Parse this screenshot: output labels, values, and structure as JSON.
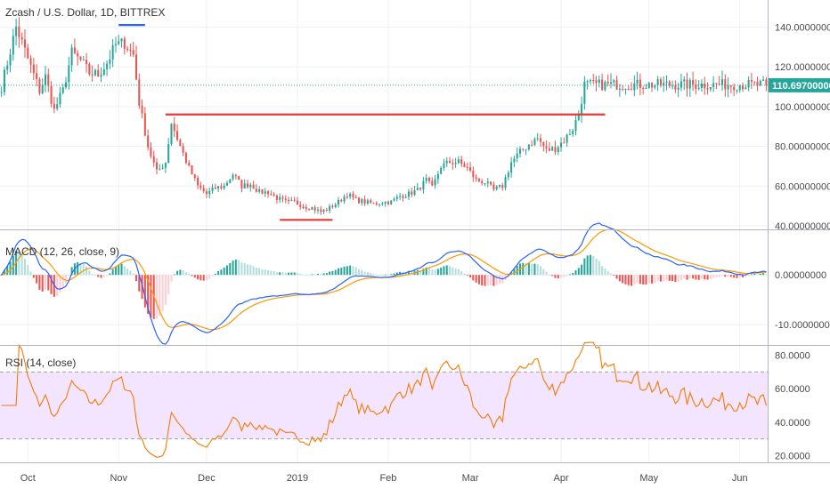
{
  "header": {
    "title": "Zcash / U.S. Dollar, 1D, BITTREX"
  },
  "colors": {
    "up": "#26a69a",
    "down": "#ef5350",
    "macd": "#2962ff",
    "signal": "#ff9800",
    "rsi": "#f57c00",
    "rsi_band": "#f3e5ff",
    "annotation": "#e53935",
    "annotation_top": "#2962ff",
    "price_tag": "#26a69a"
  },
  "chart_data": [
    {
      "type": "candlestick",
      "title": "Zcash / U.S. Dollar, 1D, BITTREX",
      "current_price_label": "110.69700000",
      "current_price": 110.697,
      "ylim": [
        40,
        150
      ],
      "y_ticks": [
        "140.00000000",
        "120.00000000",
        "100.00000000",
        "80.00000000",
        "60.00000000",
        "40.00000000"
      ],
      "y_tick_values": [
        140,
        120,
        100,
        80,
        60,
        40
      ],
      "x_ticks": [
        "Oct",
        "Nov",
        "Dec",
        "2019",
        "Feb",
        "Mar",
        "Apr",
        "May",
        "Jun"
      ],
      "x_tick_days": [
        9,
        40,
        70,
        101,
        132,
        160,
        191,
        221,
        252
      ],
      "total_days": 262,
      "close_anchors": [
        [
          0,
          110
        ],
        [
          3,
          128
        ],
        [
          5,
          140
        ],
        [
          7,
          132
        ],
        [
          10,
          120
        ],
        [
          13,
          108
        ],
        [
          15,
          115
        ],
        [
          18,
          98
        ],
        [
          21,
          108
        ],
        [
          24,
          127
        ],
        [
          27,
          123
        ],
        [
          30,
          117
        ],
        [
          33,
          116
        ],
        [
          36,
          122
        ],
        [
          39,
          131
        ],
        [
          42,
          132
        ],
        [
          45,
          126
        ],
        [
          47,
          102
        ],
        [
          50,
          80
        ],
        [
          53,
          67
        ],
        [
          56,
          72
        ],
        [
          58,
          92
        ],
        [
          61,
          80
        ],
        [
          64,
          69
        ],
        [
          67,
          60
        ],
        [
          70,
          56
        ],
        [
          73,
          59
        ],
        [
          76,
          60
        ],
        [
          79,
          66
        ],
        [
          82,
          60
        ],
        [
          85,
          61
        ],
        [
          88,
          57
        ],
        [
          91,
          57
        ],
        [
          94,
          54
        ],
        [
          97,
          52
        ],
        [
          100,
          52
        ],
        [
          103,
          50
        ],
        [
          106,
          49
        ],
        [
          109,
          47
        ],
        [
          112,
          49
        ],
        [
          115,
          52
        ],
        [
          118,
          56
        ],
        [
          121,
          53
        ],
        [
          124,
          52
        ],
        [
          127,
          51
        ],
        [
          130,
          52
        ],
        [
          133,
          52
        ],
        [
          136,
          55
        ],
        [
          139,
          56
        ],
        [
          142,
          58
        ],
        [
          145,
          63
        ],
        [
          147,
          59
        ],
        [
          150,
          70
        ],
        [
          153,
          72
        ],
        [
          156,
          72
        ],
        [
          159,
          69
        ],
        [
          162,
          63
        ],
        [
          165,
          62
        ],
        [
          168,
          58
        ],
        [
          171,
          60
        ],
        [
          174,
          72
        ],
        [
          177,
          77
        ],
        [
          180,
          81
        ],
        [
          183,
          84
        ],
        [
          186,
          78
        ],
        [
          189,
          79
        ],
        [
          192,
          83
        ],
        [
          195,
          89
        ],
        [
          197,
          96
        ],
        [
          199,
          111
        ]
      ],
      "annotations": [
        {
          "type": "hline",
          "y": 141,
          "day_start": 40,
          "day_end": 49,
          "color": "#2962ff"
        },
        {
          "type": "hline",
          "y": 96,
          "day_start": 56,
          "day_end": 206,
          "color": "#e53935"
        },
        {
          "type": "hline",
          "y": 43,
          "day_start": 95,
          "day_end": 113,
          "color": "#e53935"
        }
      ]
    },
    {
      "type": "macd",
      "title": "MACD (12, 26, close, 9)",
      "ylim": [
        -13,
        7
      ],
      "y_ticks": [
        "0.00000000",
        "-10.00000000"
      ],
      "y_tick_values": [
        0,
        -10
      ]
    },
    {
      "type": "line",
      "title": "RSI (14, close)",
      "ylim": [
        17,
        83
      ],
      "y_ticks": [
        "80.0000",
        "60.0000",
        "40.0000",
        "20.0000"
      ],
      "y_tick_values": [
        80,
        60,
        40,
        20
      ],
      "bands": [
        70,
        30
      ]
    }
  ]
}
